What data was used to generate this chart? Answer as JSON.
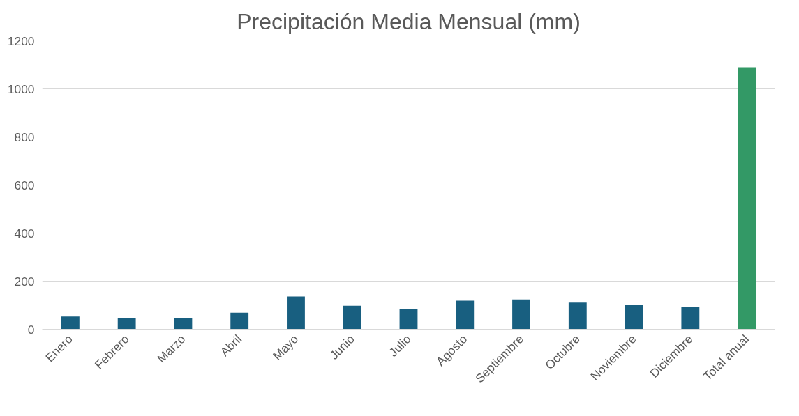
{
  "chart_data": {
    "type": "bar",
    "title": "Precipitación Media Mensual (mm)",
    "categories": [
      "Enero",
      "Febrero",
      "Marzo",
      "Abril",
      "Mayo",
      "Junio",
      "Julio",
      "Agosto",
      "Septiembre",
      "Octubre",
      "Noviembre",
      "Diciembre",
      "Total anual"
    ],
    "values": [
      53,
      45,
      47,
      69,
      136,
      98,
      84,
      119,
      124,
      111,
      103,
      93,
      1090
    ],
    "colors": [
      "#185f80",
      "#185f80",
      "#185f80",
      "#185f80",
      "#185f80",
      "#185f80",
      "#185f80",
      "#185f80",
      "#185f80",
      "#185f80",
      "#185f80",
      "#185f80",
      "#339966"
    ],
    "ylim": [
      0,
      1200
    ],
    "yticks": [
      0,
      200,
      400,
      600,
      800,
      1000,
      1200
    ],
    "grid": "y"
  }
}
